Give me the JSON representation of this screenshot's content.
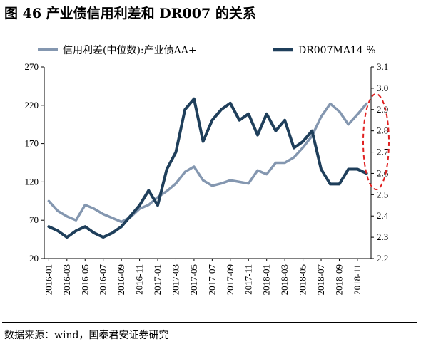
{
  "figure": {
    "title": "图 46 产业债信用利差和 DR007 的关系",
    "source": "数据来源：wind，国泰君安证券研究"
  },
  "colors": {
    "spread": "#8497b0",
    "dr007": "#1f3f5b",
    "highlight": "#e02020"
  },
  "chart_data": {
    "type": "line",
    "legend_position": "top",
    "grid": false,
    "x_axis": {
      "tick_labels": [
        "2016-01",
        "2016-03",
        "2016-05",
        "2016-07",
        "2016-09",
        "2016-11",
        "2017-01",
        "2017-03",
        "2017-05",
        "2017-07",
        "2017-09",
        "2017-11",
        "2018-01",
        "2018-03",
        "2018-05",
        "2018-07",
        "2018-09",
        "2018-11"
      ],
      "range": [
        "2016-01",
        "2018-12"
      ]
    },
    "y_left": {
      "ylim": [
        20,
        270
      ],
      "ticks": [
        20,
        70,
        120,
        170,
        220,
        270
      ]
    },
    "y_right": {
      "ylim": [
        2.2,
        3.1
      ],
      "ticks": [
        "2.2",
        "2.3",
        "2.4",
        "2.5",
        "2.6",
        "2.7",
        "2.8",
        "2.9",
        "3.0",
        "3.1"
      ]
    },
    "annotations": [
      {
        "shape": "dashed-ellipse",
        "around": "2018-12 end of both series"
      }
    ],
    "series": [
      {
        "name": "信用利差(中位数):产业债AA+",
        "axis": "left",
        "x": [
          "2016-01",
          "2016-02",
          "2016-03",
          "2016-04",
          "2016-05",
          "2016-06",
          "2016-07",
          "2016-08",
          "2016-09",
          "2016-10",
          "2016-11",
          "2016-12",
          "2017-01",
          "2017-02",
          "2017-03",
          "2017-04",
          "2017-05",
          "2017-06",
          "2017-07",
          "2017-08",
          "2017-09",
          "2017-10",
          "2017-11",
          "2017-12",
          "2018-01",
          "2018-02",
          "2018-03",
          "2018-04",
          "2018-05",
          "2018-06",
          "2018-07",
          "2018-08",
          "2018-09",
          "2018-10",
          "2018-11",
          "2018-12"
        ],
        "values": [
          95,
          82,
          75,
          70,
          90,
          85,
          78,
          73,
          68,
          74,
          85,
          90,
          100,
          108,
          118,
          133,
          140,
          122,
          115,
          118,
          122,
          120,
          118,
          135,
          130,
          145,
          145,
          152,
          165,
          180,
          205,
          222,
          212,
          195,
          208,
          222
        ]
      },
      {
        "name": "DR007MA14 %",
        "axis": "right",
        "x": [
          "2016-01",
          "2016-02",
          "2016-03",
          "2016-04",
          "2016-05",
          "2016-06",
          "2016-07",
          "2016-08",
          "2016-09",
          "2016-10",
          "2016-11",
          "2016-12",
          "2017-01",
          "2017-02",
          "2017-03",
          "2017-04",
          "2017-05",
          "2017-06",
          "2017-07",
          "2017-08",
          "2017-09",
          "2017-10",
          "2017-11",
          "2017-12",
          "2018-01",
          "2018-02",
          "2018-03",
          "2018-04",
          "2018-05",
          "2018-06",
          "2018-07",
          "2018-08",
          "2018-09",
          "2018-10",
          "2018-11",
          "2018-12"
        ],
        "values": [
          2.35,
          2.33,
          2.3,
          2.33,
          2.35,
          2.32,
          2.3,
          2.32,
          2.35,
          2.4,
          2.45,
          2.52,
          2.45,
          2.62,
          2.7,
          2.9,
          2.95,
          2.75,
          2.85,
          2.9,
          2.93,
          2.85,
          2.88,
          2.78,
          2.88,
          2.8,
          2.85,
          2.72,
          2.75,
          2.8,
          2.62,
          2.55,
          2.55,
          2.62,
          2.62,
          2.6
        ]
      }
    ]
  }
}
